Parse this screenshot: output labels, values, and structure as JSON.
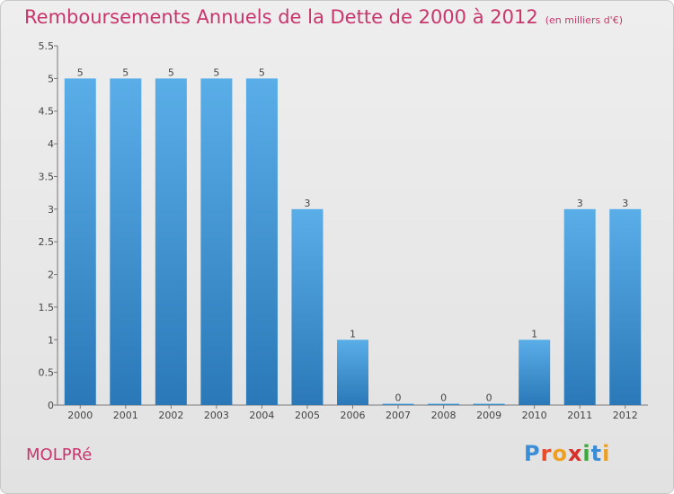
{
  "header": {
    "title": "Remboursements Annuels de la Dette de 2000 à 2012",
    "unit": "(en milliers d'€)"
  },
  "footer": {
    "town": "MOLPRé",
    "logo_letters": [
      "P",
      "r",
      "o",
      "x",
      "i",
      "t",
      "i"
    ]
  },
  "colors": {
    "title": "#c8366c",
    "bar_top": "#5aaee8",
    "bar_bottom": "#2a78b8",
    "logo": [
      "#3a8ed8",
      "#e84a2a",
      "#f0a020",
      "#d8302a",
      "#3aaa3a",
      "#3a8ed8",
      "#f0a020"
    ]
  },
  "chart_data": {
    "type": "bar",
    "categories": [
      "2000",
      "2001",
      "2002",
      "2003",
      "2004",
      "2005",
      "2006",
      "2007",
      "2008",
      "2009",
      "2010",
      "2011",
      "2012"
    ],
    "values": [
      5,
      5,
      5,
      5,
      5,
      3,
      1,
      0,
      0,
      0,
      1,
      3,
      3
    ],
    "data_labels": [
      "5",
      "5",
      "5",
      "5",
      "5",
      "3",
      "1",
      "0",
      "0",
      "0",
      "1",
      "3",
      "3"
    ],
    "yticks": [
      "0",
      "0.5",
      "1",
      "1.5",
      "2",
      "2.5",
      "3",
      "3.5",
      "4",
      "4.5",
      "5",
      "5.5"
    ],
    "ylim": [
      0,
      5.5
    ],
    "grid": false
  }
}
